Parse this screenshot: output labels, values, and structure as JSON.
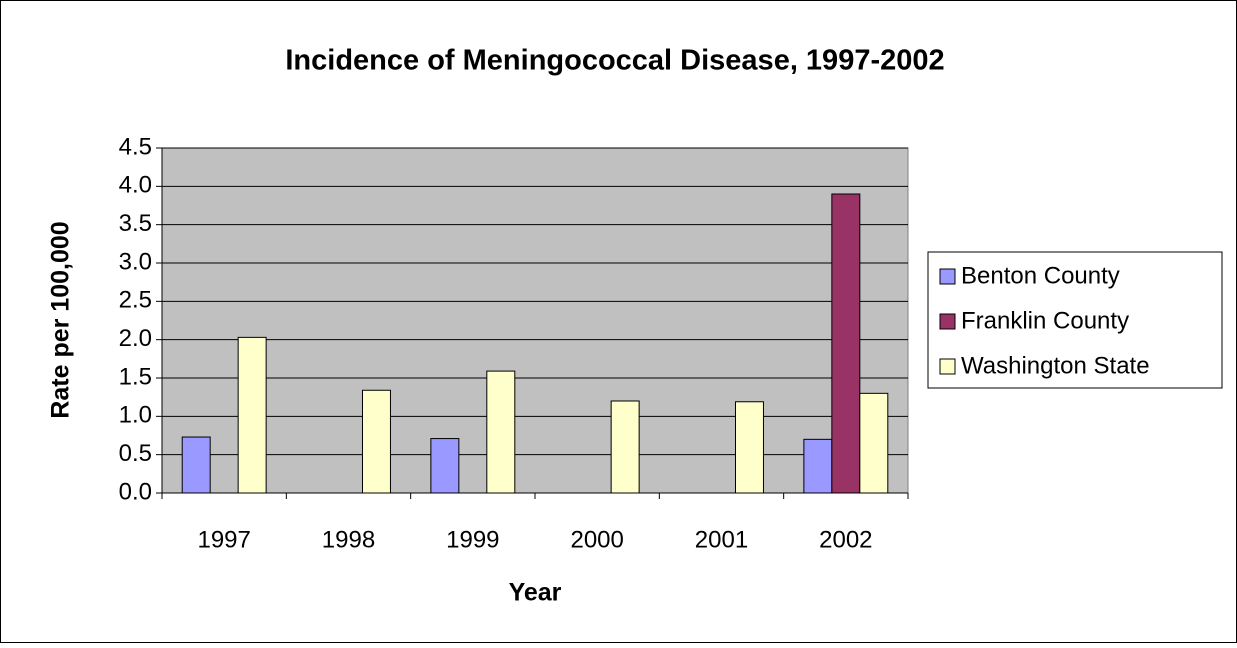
{
  "chart_data": {
    "type": "bar",
    "title": "Incidence of Meningococcal Disease, 1997-2002",
    "x_label": "Year",
    "y_label": "Rate per 100,000",
    "categories": [
      "1997",
      "1998",
      "1999",
      "2000",
      "2001",
      "2002"
    ],
    "series": [
      {
        "name": "Benton County",
        "color": "#9999ff",
        "values": [
          0.73,
          null,
          0.71,
          null,
          null,
          0.7
        ]
      },
      {
        "name": "Franklin County",
        "color": "#993366",
        "values": [
          null,
          null,
          null,
          null,
          null,
          3.9
        ]
      },
      {
        "name": "Washington State",
        "color": "#ffffcc",
        "values": [
          2.03,
          1.34,
          1.59,
          1.2,
          1.19,
          1.3
        ]
      }
    ],
    "ylim": [
      0,
      4.5
    ],
    "yticks": [
      {
        "value": 0,
        "label": "0.0"
      },
      0.5,
      {
        "value": 1,
        "label": "1.0"
      },
      1.5,
      {
        "value": 2,
        "label": "2.0"
      },
      2.5,
      {
        "value": 3,
        "label": "3.0"
      },
      3.5,
      {
        "value": 4,
        "label": "4.0"
      },
      4.5
    ],
    "grid": true,
    "plot_background": "#c0c0c0",
    "legend": "right"
  }
}
